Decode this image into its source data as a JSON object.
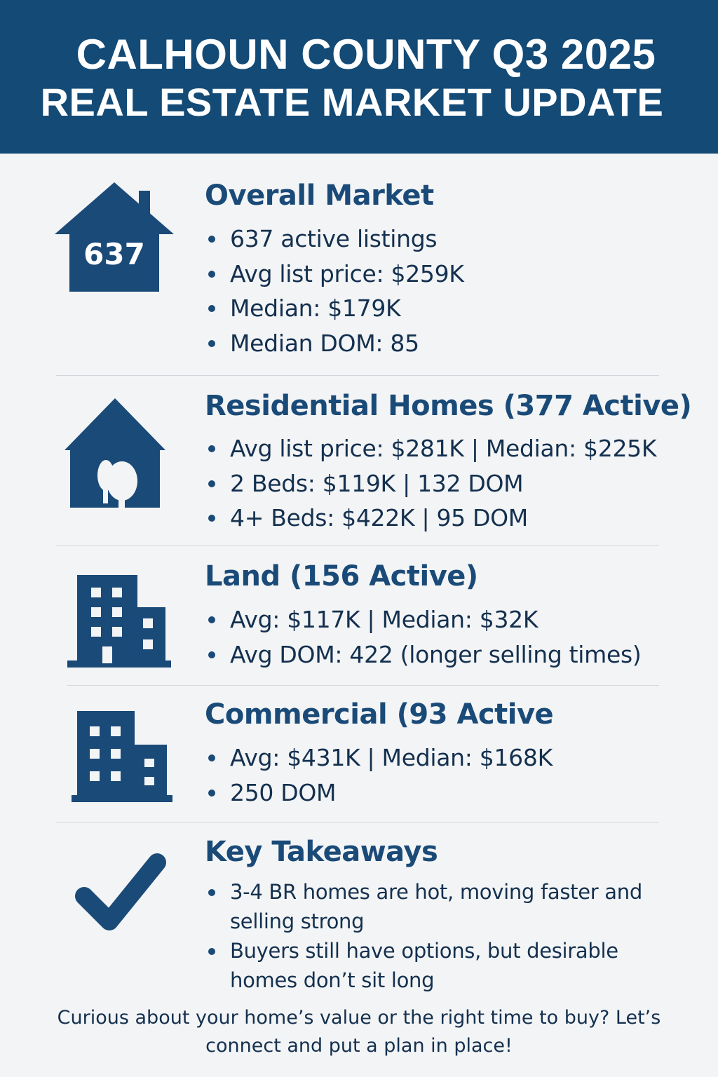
{
  "header": {
    "line1": "CALHOUN COUNTY Q3 2025",
    "line2": "REAL ESTATE MARKET UPDATE"
  },
  "sections": {
    "overall": {
      "icon": "house-icon",
      "icon_text": "637",
      "heading": "Overall Market",
      "bullets": [
        "637 active listings",
        "Avg list price: $259K",
        "Median: $179K",
        "Median DOM: 85"
      ]
    },
    "residential": {
      "icon": "house-trees-icon",
      "heading": "Residential Homes (377 Active)",
      "bullets": [
        "Avg list price: $281K | Median: $225K",
        "2 Beds: $119K | 132 DOM",
        "4+ Beds: $422K | 95 DOM"
      ]
    },
    "land": {
      "icon": "building-icon",
      "heading": "Land (156 Active)",
      "bullets": [
        "Avg: $117K | Median:  $32K",
        "Avg DOM: 422 (longer selling times)"
      ]
    },
    "commercial": {
      "icon": "building-icon",
      "heading": "Commercial (93 Active",
      "bullets": [
        "Avg: $431K | Median: $168K",
        "250 DOM"
      ]
    },
    "takeaways": {
      "icon": "checkmark-icon",
      "heading": "Key Takeaways",
      "bullets": [
        "3-4 BR homes are hot, moving faster and selling strong",
        "Buyers still have options, but desirable homes don’t sit long"
      ]
    }
  },
  "cta": "Curious about your home’s value or the right time to buy? Let’s connect and put a plan in place!",
  "colors": {
    "header_bg": "#134a76",
    "accent": "#1a4a78",
    "text": "#14304f",
    "background": "#f3f4f5"
  }
}
